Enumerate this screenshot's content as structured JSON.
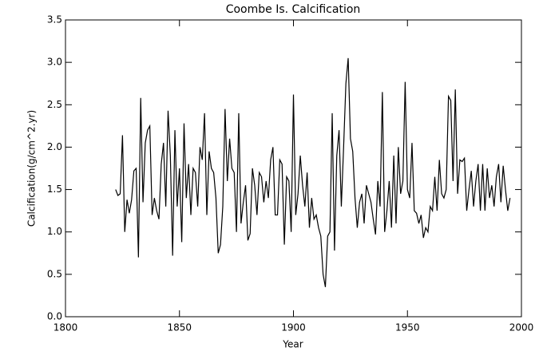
{
  "chart_data": {
    "type": "line",
    "title": "Coombe Is. Calcification",
    "x_label": "Year",
    "y_label": "Calcification(g/cm^2.yr)",
    "color": "#000000",
    "x": [
      1822,
      1823,
      1824,
      1825,
      1826,
      1827,
      1828,
      1829,
      1830,
      1831,
      1832,
      1833,
      1834,
      1835,
      1836,
      1837,
      1838,
      1839,
      1840,
      1841,
      1842,
      1843,
      1844,
      1845,
      1846,
      1847,
      1848,
      1849,
      1850,
      1851,
      1852,
      1853,
      1854,
      1855,
      1856,
      1857,
      1858,
      1859,
      1860,
      1861,
      1862,
      1863,
      1864,
      1865,
      1866,
      1867,
      1868,
      1869,
      1870,
      1871,
      1872,
      1873,
      1874,
      1875,
      1876,
      1877,
      1878,
      1879,
      1880,
      1881,
      1882,
      1883,
      1884,
      1885,
      1886,
      1887,
      1888,
      1889,
      1890,
      1891,
      1892,
      1893,
      1894,
      1895,
      1896,
      1897,
      1898,
      1899,
      1900,
      1901,
      1902,
      1903,
      1904,
      1905,
      1906,
      1907,
      1908,
      1909,
      1910,
      1911,
      1912,
      1913,
      1914,
      1915,
      1916,
      1917,
      1918,
      1919,
      1920,
      1921,
      1922,
      1923,
      1924,
      1925,
      1926,
      1927,
      1928,
      1929,
      1930,
      1931,
      1932,
      1933,
      1934,
      1935,
      1936,
      1937,
      1938,
      1939,
      1940,
      1941,
      1942,
      1943,
      1944,
      1945,
      1946,
      1947,
      1948,
      1949,
      1950,
      1951,
      1952,
      1953,
      1954,
      1955,
      1956,
      1957,
      1958,
      1959,
      1960,
      1961,
      1962,
      1963,
      1964,
      1965,
      1966,
      1967,
      1968,
      1969,
      1970,
      1971,
      1972,
      1973,
      1974,
      1975,
      1976,
      1977,
      1978,
      1979,
      1980,
      1981,
      1982,
      1983,
      1984,
      1985,
      1986,
      1987,
      1988,
      1989,
      1990,
      1991,
      1992,
      1993,
      1994,
      1995
    ],
    "series": [
      {
        "name": "Calcification",
        "values": [
          1.5,
          1.43,
          1.45,
          2.14,
          1.0,
          1.38,
          1.22,
          1.38,
          1.72,
          1.75,
          0.7,
          2.58,
          1.35,
          2.05,
          2.2,
          2.25,
          1.2,
          1.4,
          1.25,
          1.15,
          1.8,
          2.05,
          1.3,
          2.43,
          1.9,
          0.72,
          2.2,
          1.3,
          1.75,
          0.88,
          2.28,
          1.4,
          1.8,
          1.2,
          1.75,
          1.7,
          1.3,
          2.0,
          1.85,
          2.4,
          1.2,
          1.95,
          1.75,
          1.7,
          1.4,
          0.75,
          0.85,
          1.3,
          2.45,
          1.6,
          2.1,
          1.75,
          1.7,
          1.0,
          2.4,
          1.1,
          1.35,
          1.55,
          0.9,
          0.98,
          1.75,
          1.55,
          1.2,
          1.7,
          1.65,
          1.35,
          1.6,
          1.4,
          1.85,
          2.0,
          1.2,
          1.2,
          1.85,
          1.8,
          0.85,
          1.65,
          1.6,
          1.0,
          2.62,
          1.2,
          1.45,
          1.9,
          1.55,
          1.3,
          1.7,
          1.05,
          1.4,
          1.15,
          1.2,
          1.05,
          0.95,
          0.5,
          0.35,
          0.95,
          1.0,
          2.4,
          0.78,
          1.9,
          2.2,
          1.3,
          2.0,
          2.75,
          3.05,
          2.1,
          1.95,
          1.4,
          1.05,
          1.35,
          1.45,
          1.1,
          1.55,
          1.45,
          1.35,
          1.15,
          0.97,
          1.6,
          1.3,
          2.65,
          1.0,
          1.25,
          1.6,
          1.05,
          1.9,
          1.1,
          2.0,
          1.45,
          1.6,
          2.77,
          1.5,
          1.4,
          2.05,
          1.25,
          1.22,
          1.1,
          1.2,
          0.93,
          1.05,
          1.0,
          1.3,
          1.25,
          1.65,
          1.25,
          1.85,
          1.45,
          1.4,
          1.5,
          2.6,
          2.55,
          1.6,
          2.68,
          1.45,
          1.85,
          1.83,
          1.87,
          1.25,
          1.5,
          1.72,
          1.3,
          1.6,
          1.8,
          1.25,
          1.8,
          1.25,
          1.75,
          1.4,
          1.55,
          1.3,
          1.65,
          1.8,
          1.35,
          1.78,
          1.5,
          1.25,
          1.4
        ]
      }
    ],
    "xlim": [
      1800,
      2000
    ],
    "xticks": [
      1800,
      1850,
      1900,
      1950,
      2000
    ],
    "ylim": [
      0,
      3.5
    ],
    "yticks": [
      {
        "value": 0,
        "label": "0.0"
      },
      {
        "value": 0.5,
        "label": "0.5"
      },
      {
        "value": 1,
        "label": "1.0"
      },
      {
        "value": 1.5,
        "label": "1.5"
      },
      {
        "value": 2,
        "label": "2.0"
      },
      {
        "value": 2.5,
        "label": "2.5"
      },
      {
        "value": 3,
        "label": "3.0"
      },
      {
        "value": 3.5,
        "label": "3.5"
      }
    ]
  }
}
